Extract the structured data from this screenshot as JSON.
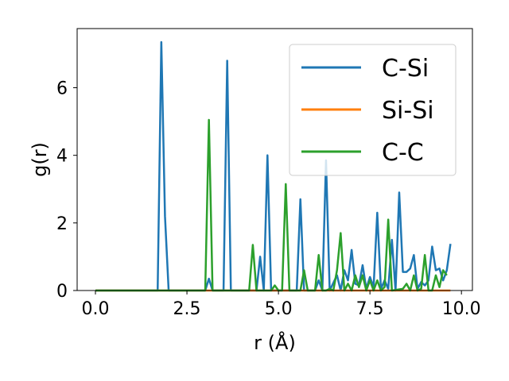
{
  "chart_data": {
    "type": "line",
    "title": "",
    "xlabel": "r (Å)",
    "ylabel": "g(r)",
    "xlim": [
      -0.5,
      10.3
    ],
    "ylim": [
      0,
      7.75
    ],
    "xticks": [
      0.0,
      2.5,
      5.0,
      7.5,
      10.0
    ],
    "xtick_labels": [
      "0.0",
      "2.5",
      "5.0",
      "7.5",
      "10.0"
    ],
    "yticks": [
      0,
      2,
      4,
      6
    ],
    "ytick_labels": [
      "0",
      "2",
      "4",
      "6"
    ],
    "grid": false,
    "legend_position": "top-right",
    "series": [
      {
        "name": "C-Si",
        "color": "#1f77b4",
        "points": [
          [
            0.0,
            0
          ],
          [
            1.7,
            0
          ],
          [
            1.8,
            7.35
          ],
          [
            1.9,
            2.2
          ],
          [
            2.0,
            0
          ],
          [
            3.0,
            0
          ],
          [
            3.1,
            0.35
          ],
          [
            3.2,
            0
          ],
          [
            3.5,
            0
          ],
          [
            3.6,
            6.8
          ],
          [
            3.7,
            0
          ],
          [
            4.4,
            0
          ],
          [
            4.5,
            1.0
          ],
          [
            4.6,
            0
          ],
          [
            4.7,
            4.0
          ],
          [
            4.8,
            0
          ],
          [
            5.5,
            0
          ],
          [
            5.6,
            2.7
          ],
          [
            5.7,
            0
          ],
          [
            6.0,
            0
          ],
          [
            6.1,
            0.3
          ],
          [
            6.2,
            0
          ],
          [
            6.3,
            3.85
          ],
          [
            6.4,
            0
          ],
          [
            6.6,
            0.45
          ],
          [
            6.7,
            0
          ],
          [
            6.8,
            0.6
          ],
          [
            6.9,
            0.3
          ],
          [
            7.0,
            1.2
          ],
          [
            7.1,
            0.2
          ],
          [
            7.2,
            0.15
          ],
          [
            7.3,
            0.75
          ],
          [
            7.4,
            0.05
          ],
          [
            7.5,
            0.4
          ],
          [
            7.6,
            0.1
          ],
          [
            7.7,
            2.3
          ],
          [
            7.8,
            0.05
          ],
          [
            7.9,
            0.3
          ],
          [
            8.0,
            0.05
          ],
          [
            8.1,
            1.5
          ],
          [
            8.2,
            0
          ],
          [
            8.3,
            2.9
          ],
          [
            8.4,
            0.55
          ],
          [
            8.5,
            0.55
          ],
          [
            8.6,
            0.65
          ],
          [
            8.7,
            1.05
          ],
          [
            8.8,
            0.05
          ],
          [
            8.9,
            0.25
          ],
          [
            9.0,
            0.15
          ],
          [
            9.1,
            0.3
          ],
          [
            9.2,
            1.3
          ],
          [
            9.3,
            0.6
          ],
          [
            9.4,
            0.65
          ],
          [
            9.5,
            0.3
          ],
          [
            9.6,
            0.6
          ],
          [
            9.7,
            1.38
          ]
        ]
      },
      {
        "name": "Si-Si",
        "color": "#ff7f0e",
        "points": [
          [
            0.0,
            0
          ],
          [
            3.0,
            0
          ],
          [
            3.1,
            0
          ],
          [
            9.7,
            0
          ]
        ]
      },
      {
        "name": "C-C",
        "color": "#2ca02c",
        "points": [
          [
            0.0,
            0
          ],
          [
            3.0,
            0
          ],
          [
            3.1,
            5.05
          ],
          [
            3.2,
            0
          ],
          [
            4.2,
            0
          ],
          [
            4.3,
            1.35
          ],
          [
            4.4,
            0
          ],
          [
            4.8,
            0
          ],
          [
            4.9,
            0.15
          ],
          [
            5.0,
            0
          ],
          [
            5.1,
            0
          ],
          [
            5.2,
            3.15
          ],
          [
            5.3,
            0
          ],
          [
            5.6,
            0
          ],
          [
            5.7,
            0.6
          ],
          [
            5.8,
            0
          ],
          [
            6.0,
            0
          ],
          [
            6.1,
            1.05
          ],
          [
            6.2,
            0
          ],
          [
            6.3,
            0
          ],
          [
            6.4,
            0.05
          ],
          [
            6.5,
            0
          ],
          [
            6.6,
            0.6
          ],
          [
            6.7,
            1.7
          ],
          [
            6.8,
            0
          ],
          [
            6.9,
            0.2
          ],
          [
            7.0,
            0
          ],
          [
            7.1,
            0.45
          ],
          [
            7.2,
            0.1
          ],
          [
            7.3,
            0.45
          ],
          [
            7.4,
            0
          ],
          [
            7.5,
            0.3
          ],
          [
            7.6,
            0
          ],
          [
            7.7,
            0.3
          ],
          [
            7.8,
            0
          ],
          [
            7.9,
            0.1
          ],
          [
            8.0,
            2.1
          ],
          [
            8.1,
            0
          ],
          [
            8.4,
            0.05
          ],
          [
            8.5,
            0.2
          ],
          [
            8.6,
            0
          ],
          [
            8.7,
            0.45
          ],
          [
            8.8,
            0
          ],
          [
            8.9,
            0.05
          ],
          [
            9.0,
            1.05
          ],
          [
            9.1,
            0
          ],
          [
            9.2,
            0
          ],
          [
            9.3,
            0.45
          ],
          [
            9.4,
            0.1
          ],
          [
            9.5,
            0.6
          ],
          [
            9.6,
            0.45
          ]
        ]
      }
    ]
  }
}
